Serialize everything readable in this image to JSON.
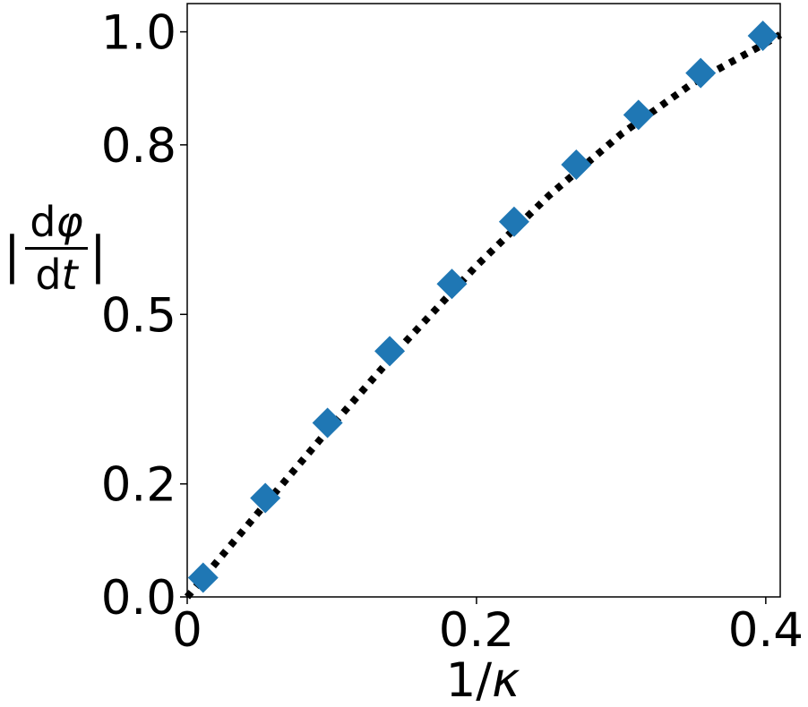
{
  "chart_data": {
    "type": "scatter",
    "xlabel_main": "1/",
    "xlabel_symbol": "κ",
    "ylabel": {
      "bar_left": "|",
      "bar_right": "|",
      "numerator_d": "d",
      "numerator_symbol": "φ",
      "denominator_d": "d",
      "denominator_symbol": "t"
    },
    "xlim": [
      0.0,
      0.41
    ],
    "ylim": [
      0.0,
      1.05
    ],
    "x_ticks": [
      {
        "value": 0.0,
        "label": "0"
      },
      {
        "value": 0.2,
        "label": "0.2"
      },
      {
        "value": 0.4,
        "label": "0.4"
      }
    ],
    "y_ticks": [
      {
        "value": 0.0,
        "label": "0.0"
      },
      {
        "value": 0.2,
        "label": "0.2"
      },
      {
        "value": 0.5,
        "label": "0.5"
      },
      {
        "value": 0.8,
        "label": "0.8"
      },
      {
        "value": 1.0,
        "label": "1.0"
      }
    ],
    "grid": false,
    "series": [
      {
        "kind": "scatter",
        "marker": "diamond",
        "color": "#1f77b4",
        "x": [
          0.011,
          0.054,
          0.097,
          0.14,
          0.183,
          0.226,
          0.269,
          0.312,
          0.355,
          0.398
        ],
        "y": [
          0.034,
          0.175,
          0.308,
          0.435,
          0.554,
          0.664,
          0.765,
          0.853,
          0.927,
          0.993
        ]
      },
      {
        "kind": "line",
        "style": "dotted",
        "color": "#000000",
        "x": [
          0.0,
          0.05,
          0.1,
          0.15,
          0.2,
          0.25,
          0.3,
          0.35,
          0.4,
          0.41
        ],
        "y": [
          0.0,
          0.152,
          0.303,
          0.449,
          0.586,
          0.71,
          0.819,
          0.91,
          0.98,
          0.995
        ]
      }
    ]
  }
}
